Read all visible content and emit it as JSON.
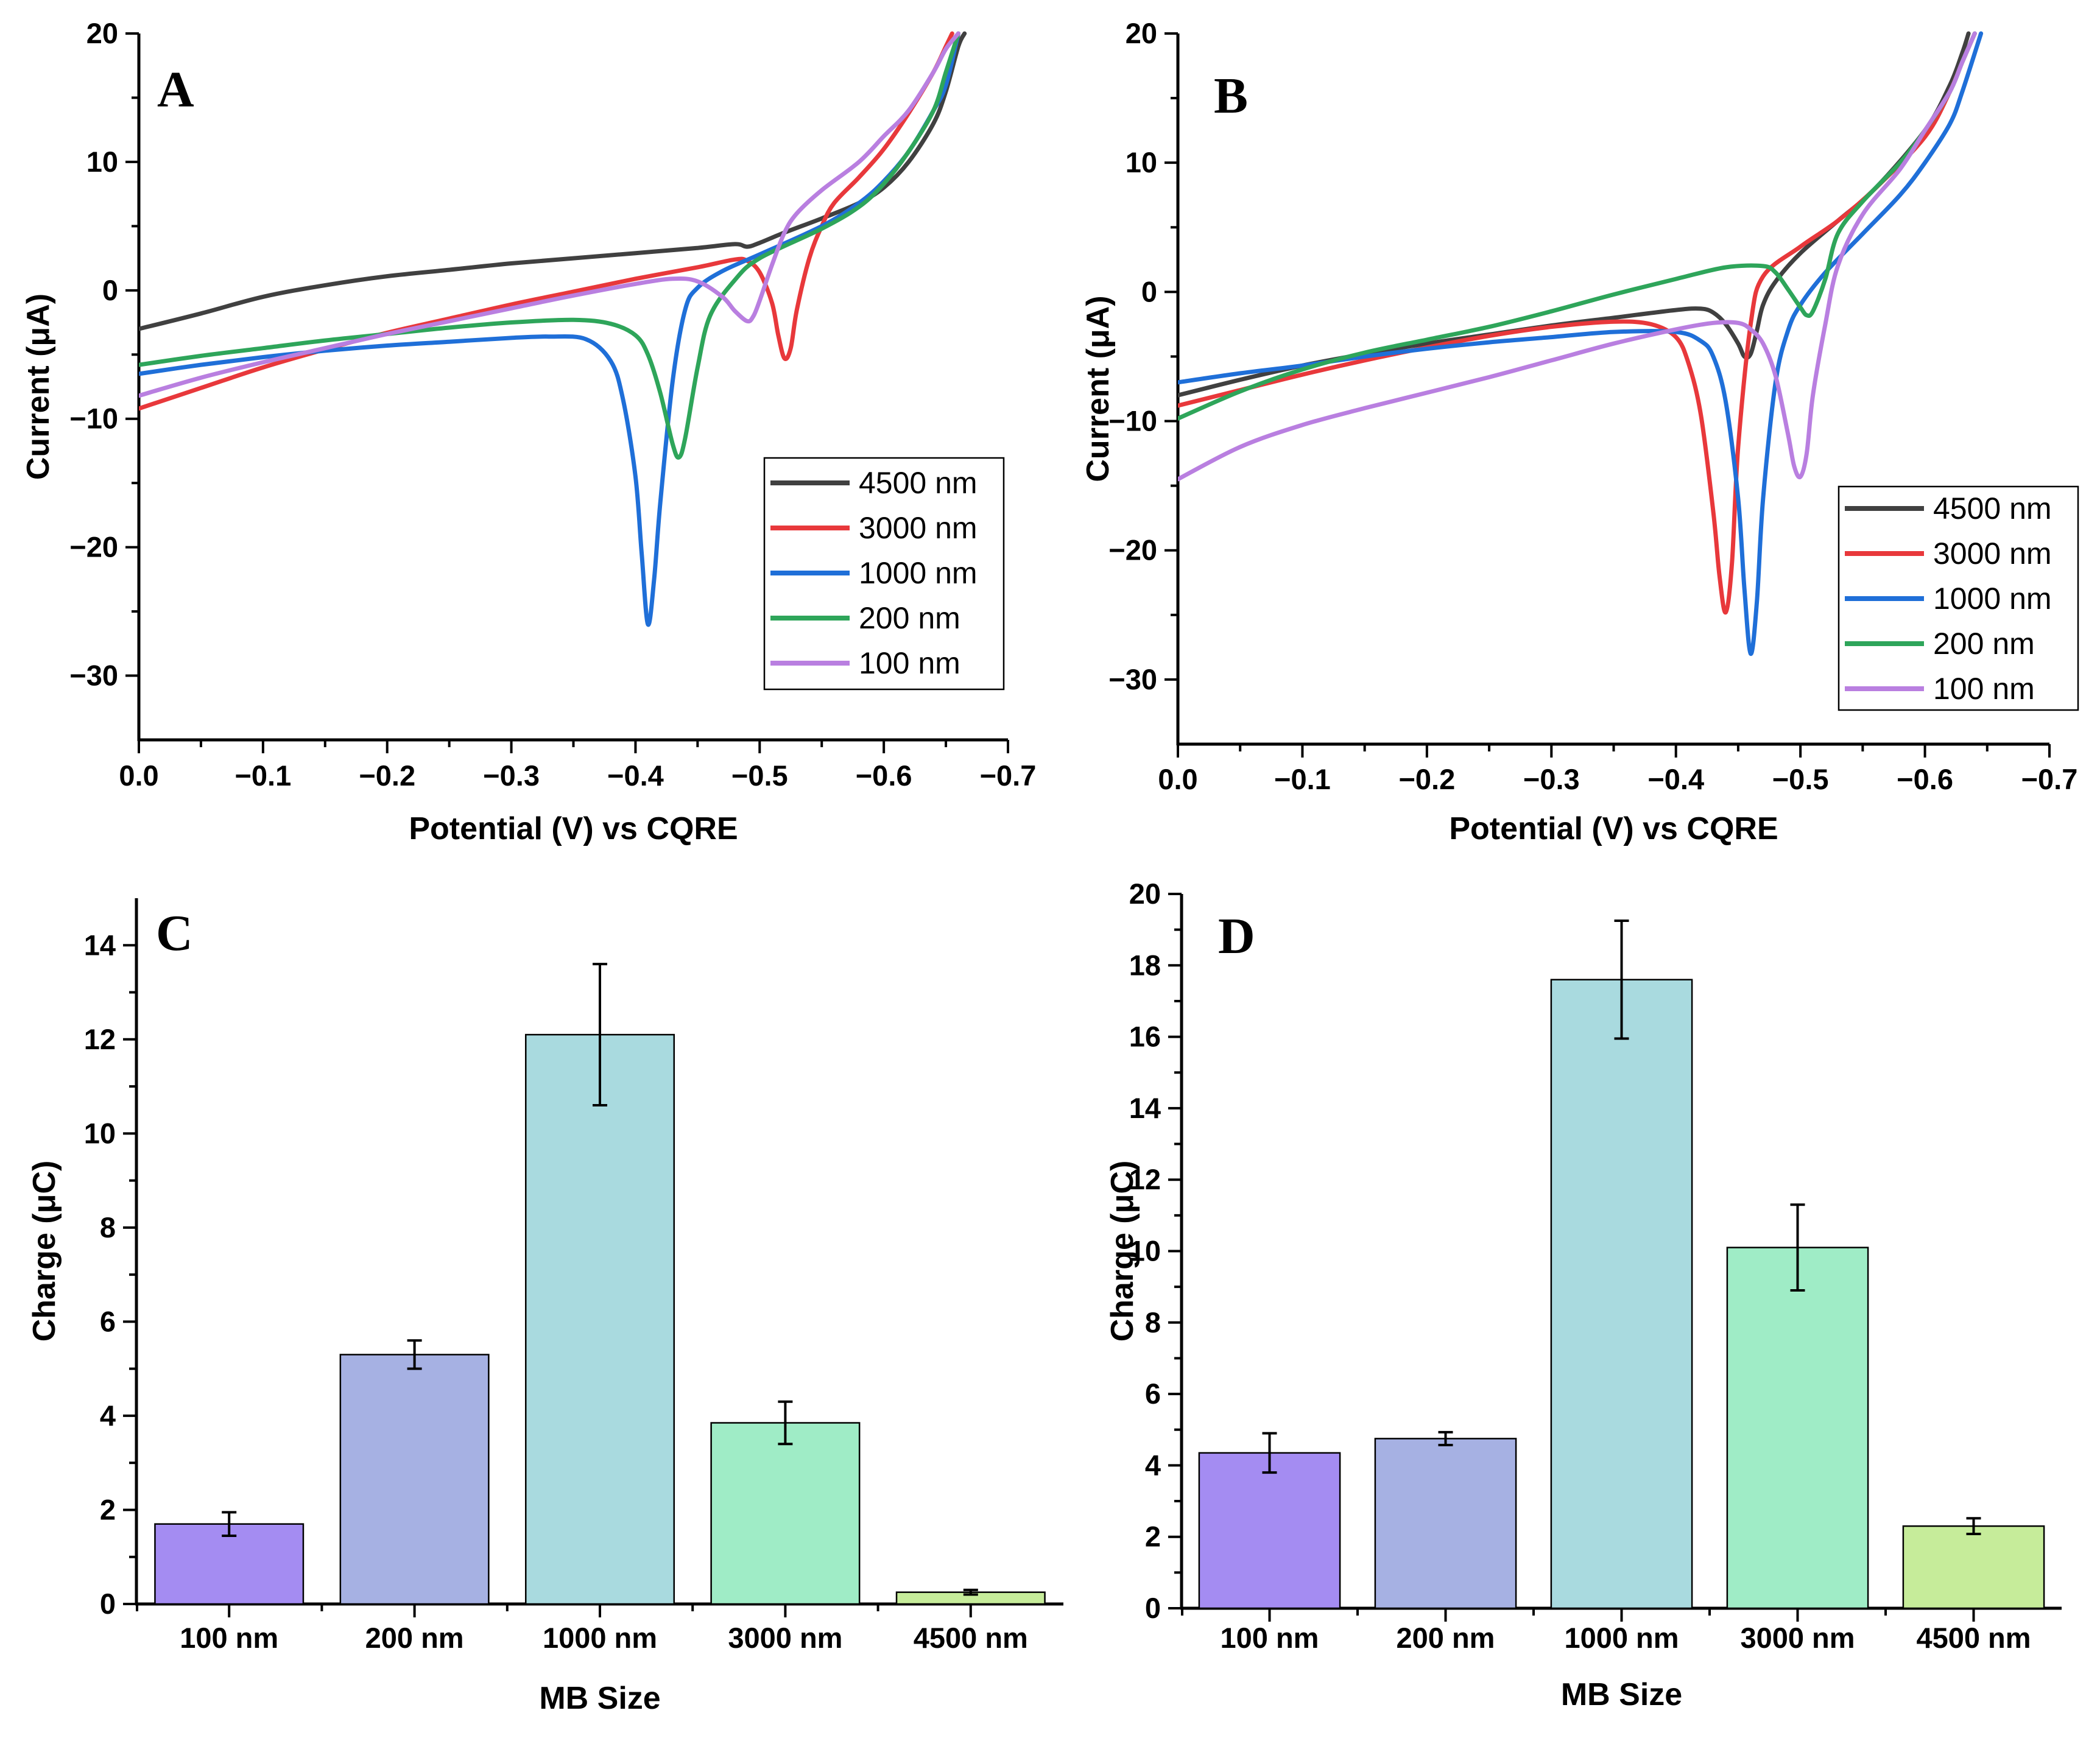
{
  "chart_data": [
    {
      "id": "A",
      "type": "line",
      "panel_label": "A",
      "xlabel": "Potential (V) vs CQRE",
      "ylabel": "Current (μA)",
      "xlim": [
        0.0,
        -0.7
      ],
      "ylim": [
        -35,
        20
      ],
      "xticks": [
        0.0,
        -0.1,
        -0.2,
        -0.3,
        -0.4,
        -0.5,
        -0.6,
        -0.7
      ],
      "xtick_labels": [
        "0.0",
        "−0.1",
        "−0.2",
        "−0.3",
        "−0.4",
        "−0.5",
        "−0.6",
        "−0.7"
      ],
      "yticks": [
        20,
        10,
        0,
        -10,
        -20,
        -30
      ],
      "ytick_labels": [
        "20",
        "10",
        "0",
        "−10",
        "−20",
        "−30"
      ],
      "legend_position": "lower-right",
      "series": [
        {
          "name": "4500 nm",
          "color": "#404040",
          "x": [
            0,
            -0.05,
            -0.1,
            -0.15,
            -0.2,
            -0.25,
            -0.3,
            -0.35,
            -0.4,
            -0.45,
            -0.48,
            -0.49,
            -0.5,
            -0.52,
            -0.55,
            -0.58,
            -0.6,
            -0.62,
            -0.64,
            -0.65,
            -0.66,
            -0.665
          ],
          "y": [
            -3.0,
            -1.8,
            -0.5,
            0.4,
            1.1,
            1.6,
            2.1,
            2.5,
            2.9,
            3.3,
            3.6,
            3.4,
            3.7,
            4.5,
            5.6,
            6.8,
            8.0,
            10.0,
            13.0,
            15.5,
            19.0,
            20
          ]
        },
        {
          "name": "3000 nm",
          "color": "#e8383b",
          "x": [
            0,
            -0.05,
            -0.1,
            -0.15,
            -0.2,
            -0.25,
            -0.3,
            -0.35,
            -0.4,
            -0.45,
            -0.48,
            -0.49,
            -0.5,
            -0.51,
            -0.515,
            -0.52,
            -0.525,
            -0.53,
            -0.54,
            -0.55,
            -0.56,
            -0.58,
            -0.6,
            -0.62,
            -0.64,
            -0.65,
            -0.655
          ],
          "y": [
            -9.2,
            -7.6,
            -6.0,
            -4.6,
            -3.3,
            -2.2,
            -1.1,
            -0.1,
            0.9,
            1.8,
            2.4,
            2.3,
            1.4,
            -1.0,
            -3.5,
            -5.3,
            -4.5,
            -1.5,
            2.5,
            5.0,
            6.8,
            8.8,
            11.0,
            13.8,
            17.0,
            19.0,
            20
          ]
        },
        {
          "name": "1000 nm",
          "color": "#1f6fd8",
          "x": [
            0,
            -0.05,
            -0.1,
            -0.15,
            -0.2,
            -0.25,
            -0.3,
            -0.33,
            -0.36,
            -0.38,
            -0.39,
            -0.4,
            -0.405,
            -0.41,
            -0.415,
            -0.42,
            -0.43,
            -0.44,
            -0.45,
            -0.47,
            -0.5,
            -0.55,
            -0.58,
            -0.6,
            -0.62,
            -0.64,
            -0.65,
            -0.66
          ],
          "y": [
            -6.5,
            -5.8,
            -5.2,
            -4.7,
            -4.3,
            -4.0,
            -3.7,
            -3.6,
            -3.8,
            -5.5,
            -8.5,
            -14.5,
            -20.5,
            -26.0,
            -22.5,
            -16.5,
            -7.0,
            -1.5,
            0.2,
            1.5,
            2.8,
            5.0,
            6.8,
            8.5,
            10.8,
            14.0,
            16.0,
            20
          ]
        },
        {
          "name": "200 nm",
          "color": "#2ea55a",
          "x": [
            0,
            -0.05,
            -0.1,
            -0.15,
            -0.2,
            -0.25,
            -0.3,
            -0.35,
            -0.38,
            -0.4,
            -0.41,
            -0.42,
            -0.43,
            -0.435,
            -0.44,
            -0.45,
            -0.46,
            -0.48,
            -0.5,
            -0.55,
            -0.58,
            -0.6,
            -0.62,
            -0.64,
            -0.65,
            -0.66
          ],
          "y": [
            -5.8,
            -5.1,
            -4.5,
            -3.9,
            -3.4,
            -2.9,
            -2.5,
            -2.3,
            -2.6,
            -3.5,
            -5.0,
            -8.0,
            -12.0,
            -13.0,
            -11.5,
            -6.0,
            -2.0,
            0.8,
            2.5,
            4.8,
            6.5,
            8.3,
            10.8,
            14.0,
            17.0,
            20
          ]
        },
        {
          "name": "100 nm",
          "color": "#b97fe0",
          "x": [
            0,
            -0.05,
            -0.1,
            -0.15,
            -0.2,
            -0.25,
            -0.3,
            -0.35,
            -0.4,
            -0.43,
            -0.45,
            -0.47,
            -0.48,
            -0.49,
            -0.495,
            -0.5,
            -0.51,
            -0.52,
            -0.53,
            -0.55,
            -0.58,
            -0.6,
            -0.62,
            -0.64,
            -0.65,
            -0.66
          ],
          "y": [
            -8.2,
            -6.8,
            -5.6,
            -4.5,
            -3.4,
            -2.4,
            -1.4,
            -0.4,
            0.5,
            0.9,
            0.7,
            -0.5,
            -1.6,
            -2.4,
            -2.0,
            -0.8,
            2.0,
            4.5,
            6.0,
            7.8,
            10.0,
            12.0,
            14.0,
            17.0,
            18.8,
            20
          ]
        }
      ]
    },
    {
      "id": "B",
      "type": "line",
      "panel_label": "B",
      "xlabel": "Potential (V) vs CQRE",
      "ylabel": "Current (μA)",
      "xlim": [
        0.0,
        -0.7
      ],
      "ylim": [
        -35,
        20
      ],
      "xticks": [
        0.0,
        -0.1,
        -0.2,
        -0.3,
        -0.4,
        -0.5,
        -0.6,
        -0.7
      ],
      "xtick_labels": [
        "0.0",
        "−0.1",
        "−0.2",
        "−0.3",
        "−0.4",
        "−0.5",
        "−0.6",
        "−0.7"
      ],
      "yticks": [
        20,
        10,
        0,
        -10,
        -20,
        -30
      ],
      "ytick_labels": [
        "20",
        "10",
        "0",
        "−10",
        "−20",
        "−30"
      ],
      "legend_position": "lower-right",
      "series": [
        {
          "name": "4500 nm",
          "color": "#404040",
          "x": [
            0,
            -0.05,
            -0.1,
            -0.15,
            -0.2,
            -0.25,
            -0.3,
            -0.35,
            -0.4,
            -0.42,
            -0.43,
            -0.44,
            -0.45,
            -0.455,
            -0.46,
            -0.465,
            -0.47,
            -0.48,
            -0.5,
            -0.53,
            -0.56,
            -0.6,
            -0.62,
            -0.63,
            -0.635
          ],
          "y": [
            -8.0,
            -6.8,
            -5.7,
            -4.8,
            -4.0,
            -3.3,
            -2.6,
            -2.0,
            -1.4,
            -1.3,
            -1.6,
            -2.5,
            -4.0,
            -5.0,
            -4.8,
            -3.0,
            -1.0,
            0.8,
            3.0,
            5.5,
            8.0,
            12.5,
            16.0,
            18.5,
            20
          ]
        },
        {
          "name": "3000 nm",
          "color": "#e8383b",
          "x": [
            0,
            -0.05,
            -0.1,
            -0.15,
            -0.2,
            -0.25,
            -0.3,
            -0.35,
            -0.38,
            -0.4,
            -0.41,
            -0.42,
            -0.43,
            -0.435,
            -0.44,
            -0.445,
            -0.45,
            -0.46,
            -0.47,
            -0.5,
            -0.53,
            -0.56,
            -0.6,
            -0.62,
            -0.63,
            -0.64
          ],
          "y": [
            -8.8,
            -7.6,
            -6.4,
            -5.3,
            -4.3,
            -3.4,
            -2.7,
            -2.3,
            -2.5,
            -3.5,
            -5.5,
            -9.5,
            -17.0,
            -22.0,
            -24.8,
            -21.0,
            -12.0,
            -2.5,
            1.2,
            3.5,
            5.5,
            8.0,
            12.0,
            15.5,
            17.8,
            20
          ]
        },
        {
          "name": "1000 nm",
          "color": "#1f6fd8",
          "x": [
            0,
            -0.05,
            -0.1,
            -0.15,
            -0.2,
            -0.25,
            -0.3,
            -0.35,
            -0.4,
            -0.42,
            -0.43,
            -0.44,
            -0.45,
            -0.455,
            -0.46,
            -0.465,
            -0.47,
            -0.48,
            -0.49,
            -0.5,
            -0.52,
            -0.55,
            -0.58,
            -0.6,
            -0.62,
            -0.63,
            -0.645
          ],
          "y": [
            -7.0,
            -6.3,
            -5.7,
            -5.0,
            -4.4,
            -3.9,
            -3.5,
            -3.1,
            -3.1,
            -3.8,
            -5.0,
            -8.5,
            -16.0,
            -23.0,
            -28.0,
            -24.0,
            -16.0,
            -7.0,
            -3.0,
            -1.0,
            1.5,
            4.5,
            7.5,
            10.0,
            13.0,
            15.5,
            20
          ]
        },
        {
          "name": "200 nm",
          "color": "#2ea55a",
          "x": [
            0,
            -0.05,
            -0.1,
            -0.15,
            -0.2,
            -0.25,
            -0.3,
            -0.35,
            -0.4,
            -0.44,
            -0.47,
            -0.48,
            -0.49,
            -0.5,
            -0.505,
            -0.51,
            -0.52,
            -0.53,
            -0.55,
            -0.58,
            -0.6,
            -0.62,
            -0.63,
            -0.64
          ],
          "y": [
            -9.8,
            -7.7,
            -6.0,
            -4.7,
            -3.7,
            -2.7,
            -1.5,
            -0.2,
            1.0,
            1.9,
            2.0,
            1.5,
            0.2,
            -1.2,
            -1.8,
            -1.5,
            1.0,
            4.5,
            7.0,
            10.0,
            12.5,
            15.5,
            17.8,
            20
          ]
        },
        {
          "name": "100 nm",
          "color": "#b97fe0",
          "x": [
            0,
            -0.05,
            -0.1,
            -0.15,
            -0.2,
            -0.25,
            -0.3,
            -0.35,
            -0.4,
            -0.43,
            -0.45,
            -0.46,
            -0.47,
            -0.48,
            -0.49,
            -0.495,
            -0.5,
            -0.505,
            -0.51,
            -0.52,
            -0.53,
            -0.55,
            -0.58,
            -0.6,
            -0.62,
            -0.63,
            -0.64
          ],
          "y": [
            -14.5,
            -12.0,
            -10.3,
            -9.0,
            -7.8,
            -6.6,
            -5.3,
            -4.0,
            -2.9,
            -2.4,
            -2.4,
            -2.9,
            -4.0,
            -6.5,
            -11.0,
            -13.5,
            -14.3,
            -12.5,
            -8.0,
            -2.5,
            2.0,
            6.0,
            9.5,
            12.5,
            15.5,
            17.8,
            20
          ]
        }
      ]
    },
    {
      "id": "C",
      "type": "bar",
      "panel_label": "C",
      "xlabel": "MB Size",
      "ylabel": "Charge (μC)",
      "ylim": [
        0,
        15
      ],
      "yticks": [
        0,
        2,
        4,
        6,
        8,
        10,
        12,
        14
      ],
      "ytick_labels": [
        "0",
        "2",
        "4",
        "6",
        "8",
        "10",
        "12",
        "14"
      ],
      "categories": [
        "100 nm",
        "200 nm",
        "1000 nm",
        "3000 nm",
        "4500 nm"
      ],
      "values": [
        1.7,
        5.3,
        12.1,
        3.85,
        0.25
      ],
      "errors": [
        0.25,
        0.3,
        1.5,
        0.45,
        0.05
      ],
      "colors": [
        "#a48cf2",
        "#a6b1e3",
        "#a9dadf",
        "#9fecc6",
        "#c6ec9a"
      ]
    },
    {
      "id": "D",
      "type": "bar",
      "panel_label": "D",
      "xlabel": "MB Size",
      "ylabel": "Charge (μC)",
      "ylim": [
        0,
        20
      ],
      "yticks": [
        0,
        2,
        4,
        6,
        8,
        10,
        12,
        14,
        16,
        18,
        20
      ],
      "ytick_labels": [
        "0",
        "2",
        "4",
        "6",
        "8",
        "10",
        "12",
        "14",
        "16",
        "18",
        "20"
      ],
      "categories": [
        "100 nm",
        "200 nm",
        "1000 nm",
        "3000 nm",
        "4500 nm"
      ],
      "values": [
        4.35,
        4.75,
        17.6,
        10.1,
        2.3
      ],
      "errors": [
        0.55,
        0.18,
        1.65,
        1.2,
        0.22
      ],
      "colors": [
        "#a48cf2",
        "#a6b1e3",
        "#a9dadf",
        "#9fecc6",
        "#c6ec9a"
      ]
    }
  ]
}
